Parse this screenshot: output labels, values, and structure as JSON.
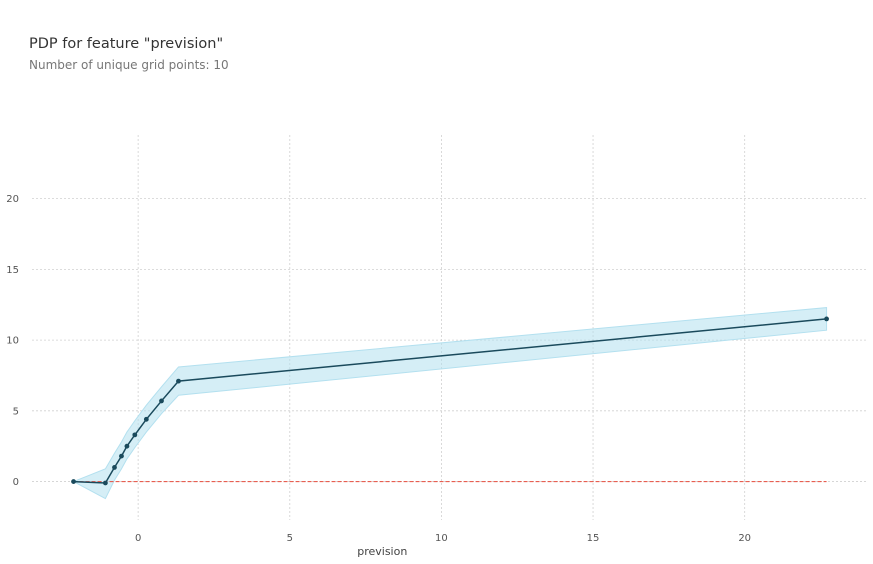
{
  "title": "PDP for feature \"prevision\"",
  "subtitle": "Number of unique grid points: 10",
  "chart_data": {
    "type": "line",
    "title": "PDP for feature \"prevision\"",
    "subtitle": "Number of unique grid points: 10",
    "xlabel": "prevision",
    "ylabel": "",
    "xlim": [
      -3.5,
      24
    ],
    "ylim": [
      -3,
      24.5
    ],
    "xticks": [
      0,
      5,
      10,
      15,
      20
    ],
    "yticks": [
      0,
      5,
      10,
      15,
      20
    ],
    "grid": true,
    "x": [
      -2.13,
      -1.08,
      -0.78,
      -0.55,
      -0.37,
      -0.11,
      0.27,
      0.77,
      1.33,
      22.7
    ],
    "y": [
      0.0,
      -0.1,
      1.0,
      1.8,
      2.5,
      3.3,
      4.4,
      5.7,
      7.1,
      11.5
    ],
    "upper": [
      0.0,
      0.9,
      2.0,
      2.8,
      3.5,
      4.3,
      5.4,
      6.7,
      8.1,
      12.3
    ],
    "lower": [
      0.0,
      -1.2,
      0.1,
      0.9,
      1.6,
      2.4,
      3.5,
      4.8,
      6.1,
      10.7
    ],
    "reference_line": 0,
    "colors": {
      "line": "#1a4a5c",
      "band": "#b3e0ef",
      "reference": "#e74c3c",
      "grid": "#d0d0d0"
    }
  }
}
